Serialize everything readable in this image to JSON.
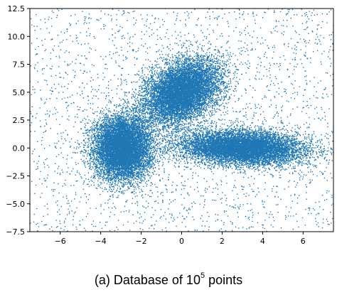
{
  "chart_data": {
    "type": "scatter",
    "title": "",
    "xlabel": "",
    "ylabel": "",
    "xlim": [
      -7.5,
      7.5
    ],
    "ylim": [
      -7.5,
      12.5
    ],
    "xticks": [
      -6,
      -4,
      -2,
      0,
      2,
      4,
      6
    ],
    "xtick_labels": [
      "−6",
      "−4",
      "−2",
      "0",
      "2",
      "4",
      "6"
    ],
    "yticks": [
      -7.5,
      -5.0,
      -2.5,
      0.0,
      2.5,
      5.0,
      7.5,
      10.0,
      12.5
    ],
    "ytick_labels": [
      "−7.5",
      "−5.0",
      "−2.5",
      "0.0",
      "2.5",
      "5.0",
      "7.5",
      "10.0",
      "12.5"
    ],
    "grid": false,
    "marker_color": "#1f77b4",
    "total_points": 100000,
    "series": [
      {
        "distribution": "gaussian-cluster",
        "center": [
          -2.9,
          0.0
        ],
        "std": [
          0.7,
          1.4
        ],
        "rotation_deg": 0
      },
      {
        "distribution": "gaussian-cluster",
        "center": [
          0.0,
          5.0
        ],
        "std": [
          0.85,
          1.5
        ],
        "rotation_deg": -20
      },
      {
        "distribution": "gaussian-cluster",
        "center": [
          3.0,
          0.0
        ],
        "std": [
          1.5,
          0.75
        ],
        "rotation_deg": -5
      },
      {
        "distribution": "uniform-background",
        "x_range": [
          -7.5,
          7.5
        ],
        "y_range": [
          -7.5,
          12.5
        ]
      }
    ]
  },
  "caption": {
    "prefix": "(a) Database of 10",
    "exponent": "5",
    "suffix": " points"
  }
}
